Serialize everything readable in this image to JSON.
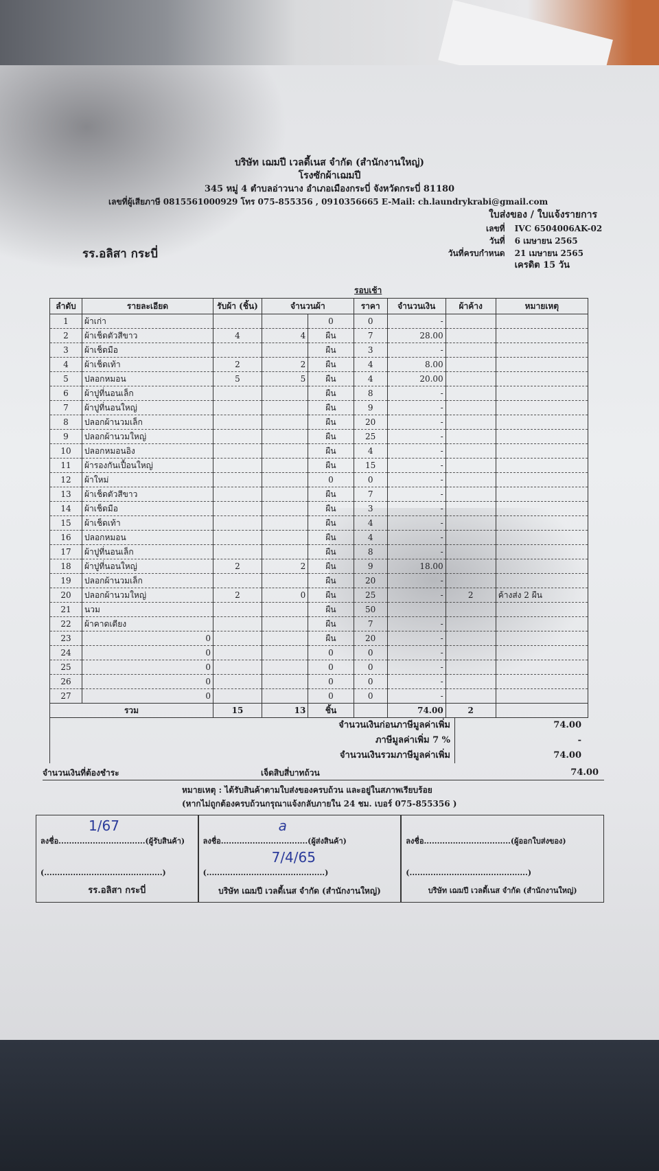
{
  "company": {
    "name": "บริษัท เฌมปี เวลดี้เนส จำกัด (สำนักงานใหญ่)",
    "subtitle": "โรงซักผ้าเฌมปี",
    "address": "345 หมู่ 4 ตำบลอ่าวนาง อำเภอเมืองกระบี่ จังหวัดกระบี่ 81180",
    "contact": "เลขที่ผู้เสียภาษี 0815561000929 โทร 075-855356 , 0910356665 E-Mail: ch.laundrykrabi@gmail.com"
  },
  "doc": {
    "type": "ใบส่งของ / ใบแจ้งรายการ",
    "number_label": "เลขที่",
    "number": "IVC 6504006AK-02",
    "date_label": "วันที่",
    "date": "6 เมษายน 2565",
    "due_label": "วันที่ครบกำหนด",
    "due": "21 เมษายน 2565",
    "credit": "เครดิต 15 วัน",
    "customer": "รร.อลิสา กระบี่",
    "round": "รอบเช้า"
  },
  "table": {
    "headers": [
      "ลำดับ",
      "รายละเอียด",
      "รับผ้า (ชิ้น)",
      "จำนวนผ้า",
      "ราคา",
      "จำนวนเงิน",
      "ผ้าค้าง",
      "หมายเหตุ"
    ],
    "rows": [
      {
        "no": "1",
        "item": "ผ้าเก่า",
        "recv": "",
        "qty": "",
        "unit": "0",
        "price": "0",
        "amount": "-",
        "pending": "",
        "note": ""
      },
      {
        "no": "2",
        "item": "ผ้าเช็ดตัวสีขาว",
        "recv": "4",
        "qty": "4",
        "unit": "ผืน",
        "price": "7",
        "amount": "28.00",
        "pending": "",
        "note": ""
      },
      {
        "no": "3",
        "item": "ผ้าเช็ดมือ",
        "recv": "",
        "qty": "",
        "unit": "ผืน",
        "price": "3",
        "amount": "-",
        "pending": "",
        "note": ""
      },
      {
        "no": "4",
        "item": "ผ้าเช็ดเท้า",
        "recv": "2",
        "qty": "2",
        "unit": "ผืน",
        "price": "4",
        "amount": "8.00",
        "pending": "",
        "note": ""
      },
      {
        "no": "5",
        "item": "ปลอกหมอน",
        "recv": "5",
        "qty": "5",
        "unit": "ผืน",
        "price": "4",
        "amount": "20.00",
        "pending": "",
        "note": ""
      },
      {
        "no": "6",
        "item": "ผ้าปูที่นอนเล็ก",
        "recv": "",
        "qty": "",
        "unit": "ผืน",
        "price": "8",
        "amount": "-",
        "pending": "",
        "note": ""
      },
      {
        "no": "7",
        "item": "ผ้าปูที่นอนใหญ่",
        "recv": "",
        "qty": "",
        "unit": "ผืน",
        "price": "9",
        "amount": "-",
        "pending": "",
        "note": ""
      },
      {
        "no": "8",
        "item": "ปลอกผ้านวมเล็ก",
        "recv": "",
        "qty": "",
        "unit": "ผืน",
        "price": "20",
        "amount": "-",
        "pending": "",
        "note": ""
      },
      {
        "no": "9",
        "item": "ปลอกผ้านวมใหญ่",
        "recv": "",
        "qty": "",
        "unit": "ผืน",
        "price": "25",
        "amount": "-",
        "pending": "",
        "note": ""
      },
      {
        "no": "10",
        "item": "ปลอกหมอนอิง",
        "recv": "",
        "qty": "",
        "unit": "ผืน",
        "price": "4",
        "amount": "-",
        "pending": "",
        "note": ""
      },
      {
        "no": "11",
        "item": "ผ้ารองกันเปื้อนใหญ่",
        "recv": "",
        "qty": "",
        "unit": "ผืน",
        "price": "15",
        "amount": "-",
        "pending": "",
        "note": ""
      },
      {
        "no": "12",
        "item": "ผ้าใหม่",
        "recv": "",
        "qty": "",
        "unit": "0",
        "price": "0",
        "amount": "-",
        "pending": "",
        "note": ""
      },
      {
        "no": "13",
        "item": "ผ้าเช็ดตัวสีขาว",
        "recv": "",
        "qty": "",
        "unit": "ผืน",
        "price": "7",
        "amount": "-",
        "pending": "",
        "note": ""
      },
      {
        "no": "14",
        "item": "ผ้าเช็ดมือ",
        "recv": "",
        "qty": "",
        "unit": "ผืน",
        "price": "3",
        "amount": "-",
        "pending": "",
        "note": ""
      },
      {
        "no": "15",
        "item": "ผ้าเช็ดเท้า",
        "recv": "",
        "qty": "",
        "unit": "ผืน",
        "price": "4",
        "amount": "-",
        "pending": "",
        "note": ""
      },
      {
        "no": "16",
        "item": "ปลอกหมอน",
        "recv": "",
        "qty": "",
        "unit": "ผืน",
        "price": "4",
        "amount": "-",
        "pending": "",
        "note": ""
      },
      {
        "no": "17",
        "item": "ผ้าปูที่นอนเล็ก",
        "recv": "",
        "qty": "",
        "unit": "ผืน",
        "price": "8",
        "amount": "-",
        "pending": "",
        "note": ""
      },
      {
        "no": "18",
        "item": "ผ้าปูที่นอนใหญ่",
        "recv": "2",
        "qty": "2",
        "unit": "ผืน",
        "price": "9",
        "amount": "18.00",
        "pending": "",
        "note": ""
      },
      {
        "no": "19",
        "item": "ปลอกผ้านวมเล็ก",
        "recv": "",
        "qty": "",
        "unit": "ผืน",
        "price": "20",
        "amount": "-",
        "pending": "",
        "note": ""
      },
      {
        "no": "20",
        "item": "ปลอกผ้านวมใหญ่",
        "recv": "2",
        "qty": "0",
        "unit": "ผืน",
        "price": "25",
        "amount": "-",
        "pending": "2",
        "note": "ค้างส่ง 2 ผืน"
      },
      {
        "no": "21",
        "item": "นวม",
        "recv": "",
        "qty": "",
        "unit": "ผืน",
        "price": "50",
        "amount": "",
        "pending": "",
        "note": ""
      },
      {
        "no": "22",
        "item": "ผ้าคาดเตียง",
        "recv": "",
        "qty": "",
        "unit": "ผืน",
        "price": "7",
        "amount": "-",
        "pending": "",
        "note": ""
      },
      {
        "no": "23",
        "item": "0",
        "recv": "",
        "qty": "",
        "unit": "ผืน",
        "price": "20",
        "amount": "-",
        "pending": "",
        "note": ""
      },
      {
        "no": "24",
        "item": "0",
        "recv": "",
        "qty": "",
        "unit": "0",
        "price": "0",
        "amount": "-",
        "pending": "",
        "note": ""
      },
      {
        "no": "25",
        "item": "0",
        "recv": "",
        "qty": "",
        "unit": "0",
        "price": "0",
        "amount": "-",
        "pending": "",
        "note": ""
      },
      {
        "no": "26",
        "item": "0",
        "recv": "",
        "qty": "",
        "unit": "0",
        "price": "0",
        "amount": "-",
        "pending": "",
        "note": ""
      },
      {
        "no": "27",
        "item": "0",
        "recv": "",
        "qty": "",
        "unit": "0",
        "price": "0",
        "amount": "-",
        "pending": "",
        "note": ""
      }
    ],
    "total": {
      "label": "รวม",
      "recv": "15",
      "qty": "13",
      "unit": "ชิ้น",
      "amount": "74.00",
      "pending": "2"
    }
  },
  "summary": {
    "subtotal_label": "จำนวนเงินก่อนภาษีมูลค่าเพิ่ม",
    "subtotal": "74.00",
    "vat_label": "ภาษีมูลค่าเพิ่ม 7 %",
    "vat": "-",
    "grand_label": "จำนวนเงินรวมภาษีมูลค่าเพิ่ม",
    "grand": "74.00",
    "payable_label": "จำนวนเงินที่ต้องชำระ",
    "payable_words": "เจ็ดสิบสี่บาทถ้วน",
    "payable": "74.00"
  },
  "notes": {
    "line1": "หมายเหตุ : ได้รับสินค้าตามใบส่งของครบถ้วน และอยู่ในสภาพเรียบร้อย",
    "line2": "(หากไม่ถูกต้องครบถ้วนกรุณาแจ้งกลับภายใน 24 ชม. เบอร์ 075-855356 )"
  },
  "signatures": [
    {
      "line": "ลงชื่อ.................................(ผู้รับสินค้า)",
      "name_line": "(.............................................)",
      "org": "รร.อลิสา กระบี่",
      "handwriting": "1/67"
    },
    {
      "line": "ลงชื่อ.................................(ผู้ส่งสินค้า)",
      "name_line": "(.............................................)",
      "org": "บริษัท เฌมปี เวลดี้เนส จำกัด (สำนักงานใหญ่)",
      "handwriting": "a",
      "handwriting_date": "7/4/65"
    },
    {
      "line": "ลงชื่อ.................................(ผู้ออกใบส่งของ)",
      "name_line": "(.............................................)",
      "org": "บริษัท เฌมปี เวลดี้เนส จำกัด (สำนักงานใหญ่)"
    }
  ]
}
